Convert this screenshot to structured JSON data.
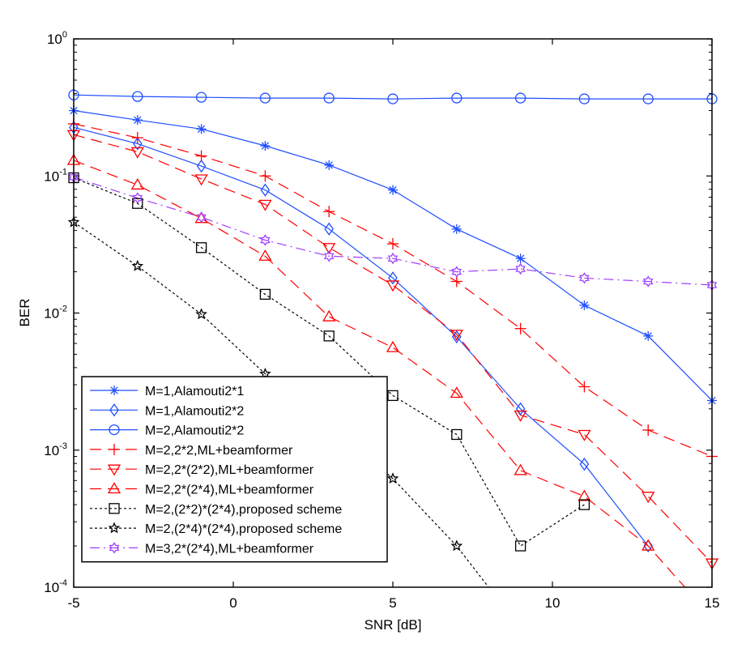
{
  "chart_data": {
    "type": "line",
    "title": "",
    "xlabel": "SNR [dB]",
    "ylabel": "BER",
    "xlim": [
      -5,
      15
    ],
    "ylim": [
      0.0001,
      1
    ],
    "yscale": "log",
    "grid": false,
    "legend_position": "bottom-left",
    "x_ticks": [
      -5,
      0,
      5,
      10,
      15
    ],
    "x_tick_labels": [
      "-5",
      "0",
      "5",
      "10",
      "15"
    ],
    "y_ticks": [
      1,
      0.1,
      0.01,
      0.001,
      0.0001
    ],
    "y_tick_labels": [
      {
        "base": "10",
        "exp": "0"
      },
      {
        "base": "10",
        "exp": "-1"
      },
      {
        "base": "10",
        "exp": "-2"
      },
      {
        "base": "10",
        "exp": "-3"
      },
      {
        "base": "10",
        "exp": "-4"
      }
    ],
    "x": [
      -5,
      -3,
      -1,
      1,
      3,
      5,
      7,
      9,
      11,
      13,
      15
    ],
    "series": [
      {
        "name": "M=1,Alamouti2*1",
        "color": "#1f4fff",
        "dash": "solid",
        "marker": "asterisk",
        "values": [
          0.3,
          0.256,
          0.22,
          0.166,
          0.12,
          0.079,
          0.041,
          0.025,
          0.0114,
          0.0068,
          0.0023
        ]
      },
      {
        "name": "M=1,Alamouti2*2",
        "color": "#1f4fff",
        "dash": "solid",
        "marker": "diamond",
        "values": [
          0.226,
          0.172,
          0.118,
          0.079,
          0.041,
          0.018,
          0.0067,
          0.002,
          0.00079,
          0.0002,
          null
        ]
      },
      {
        "name": "M=2,Alamouti2*2",
        "color": "#1f4fff",
        "dash": "solid",
        "marker": "circle",
        "values": [
          0.39,
          0.38,
          0.375,
          0.37,
          0.37,
          0.365,
          0.37,
          0.37,
          0.365,
          0.365,
          0.365
        ]
      },
      {
        "name": "M=2,2*2,ML+beamformer",
        "color": "#ff0000",
        "dash": "dashed",
        "marker": "plus",
        "values": [
          0.24,
          0.19,
          0.14,
          0.1,
          0.055,
          0.032,
          0.017,
          0.0077,
          0.0029,
          0.0014,
          0.0009
        ]
      },
      {
        "name": "M=2,2*(2*2),ML+beamformer",
        "color": "#ff0000",
        "dash": "dashed",
        "marker": "triangle-down",
        "values": [
          0.2,
          0.15,
          0.095,
          0.062,
          0.03,
          0.016,
          0.007,
          0.0018,
          0.0013,
          0.00046,
          0.00015
        ]
      },
      {
        "name": "M=2,2*(2*4),ML+beamformer",
        "color": "#ff0000",
        "dash": "dashed",
        "marker": "triangle-up",
        "values": [
          0.13,
          0.086,
          0.049,
          0.026,
          0.0094,
          0.0056,
          0.0026,
          0.00071,
          0.00046,
          0.0002,
          6e-05
        ]
      },
      {
        "name": "M=2,(2*2)*(2*4),proposed scheme",
        "color": "#000000",
        "dash": "dotted",
        "marker": "square",
        "values": [
          0.097,
          0.063,
          0.03,
          0.0137,
          0.0068,
          0.0025,
          0.0013,
          0.0002,
          0.0004,
          null,
          null
        ]
      },
      {
        "name": "M=2,(2*4)*(2*4),proposed scheme",
        "color": "#000000",
        "dash": "dotted",
        "marker": "star",
        "values": [
          0.046,
          0.022,
          0.0098,
          0.0036,
          0.0016,
          0.00062,
          0.0002,
          5e-05,
          null,
          null,
          null
        ]
      },
      {
        "name": "M=3,2*(2*4),ML+beamformer",
        "color": "#a040ff",
        "dash": "dashdot",
        "marker": "hexagram",
        "values": [
          0.098,
          0.069,
          0.05,
          0.034,
          0.026,
          0.025,
          0.02,
          0.021,
          0.018,
          0.017,
          0.016
        ]
      }
    ]
  }
}
